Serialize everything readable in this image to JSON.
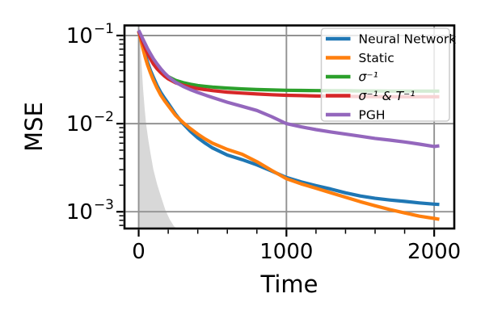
{
  "chart_data": {
    "type": "line",
    "title": "",
    "xlabel": "Time",
    "ylabel": "MSE",
    "x_scale": "linear",
    "y_scale": "log",
    "xlim": [
      -96,
      2136
    ],
    "ylim": [
      0.000645,
      0.1316
    ],
    "grid": true,
    "legend_position": "upper right",
    "x_ticks": [
      {
        "value": 0,
        "label": "0"
      },
      {
        "value": 1000,
        "label": "1000"
      },
      {
        "value": 2000,
        "label": "2000"
      }
    ],
    "x_minor_values": [
      200,
      400,
      600,
      800,
      1200,
      1400,
      1600,
      1800
    ],
    "y_ticks": [
      {
        "value": 0.1,
        "base": "10",
        "exp": "−1"
      },
      {
        "value": 0.01,
        "base": "10",
        "exp": "−2"
      },
      {
        "value": 0.001,
        "base": "10",
        "exp": "−3"
      }
    ],
    "y_minor_values": [
      0.09,
      0.08,
      0.07,
      0.06,
      0.05,
      0.04,
      0.03,
      0.02,
      0.009,
      0.008,
      0.007,
      0.006,
      0.005,
      0.004,
      0.003,
      0.002,
      0.0009,
      0.0008,
      0.0007
    ],
    "x": [
      0,
      10,
      20,
      30,
      45,
      60,
      80,
      100,
      125,
      150,
      175,
      200,
      250,
      300,
      350,
      400,
      450,
      500,
      600,
      700,
      800,
      900,
      1000,
      1100,
      1200,
      1300,
      1400,
      1500,
      1600,
      1700,
      1800,
      1900,
      2000,
      2035
    ],
    "series": [
      {
        "name": "Neural Network",
        "color": "#1f77b4",
        "math": false,
        "values": [
          0.112,
          0.098,
          0.086,
          0.075,
          0.06,
          0.05,
          0.04,
          0.0335,
          0.027,
          0.0225,
          0.0195,
          0.017,
          0.0128,
          0.01,
          0.0082,
          0.0069,
          0.006,
          0.0053,
          0.0044,
          0.0039,
          0.0034,
          0.0029,
          0.00245,
          0.00218,
          0.00198,
          0.00181,
          0.00164,
          0.00151,
          0.00142,
          0.00136,
          0.00131,
          0.00126,
          0.00122,
          0.00121
        ]
      },
      {
        "name": "Static",
        "color": "#ff7f0e",
        "math": false,
        "values": [
          0.112,
          0.096,
          0.082,
          0.07,
          0.056,
          0.0465,
          0.0375,
          0.031,
          0.0252,
          0.021,
          0.0182,
          0.016,
          0.0124,
          0.0103,
          0.0088,
          0.0076,
          0.0067,
          0.006,
          0.0051,
          0.0045,
          0.0037,
          0.00295,
          0.00237,
          0.00207,
          0.00185,
          0.00164,
          0.00146,
          0.0013,
          0.00117,
          0.00106,
          0.00097,
          0.00089,
          0.00084,
          0.00082
        ]
      },
      {
        "name": "σ⁻¹",
        "color": "#2ca02c",
        "math": true,
        "values": [
          0.112,
          0.102,
          0.093,
          0.085,
          0.074,
          0.066,
          0.057,
          0.05,
          0.044,
          0.0398,
          0.0366,
          0.0342,
          0.031,
          0.0292,
          0.028,
          0.0271,
          0.0265,
          0.026,
          0.0253,
          0.0248,
          0.0244,
          0.0241,
          0.0239,
          0.0238,
          0.0237,
          0.0236,
          0.0236,
          0.0235,
          0.0235,
          0.0234,
          0.0234,
          0.0234,
          0.0234,
          0.0234
        ]
      },
      {
        "name": "σ⁻¹ & T⁻¹",
        "color": "#d62728",
        "math": true,
        "values": [
          0.112,
          0.101,
          0.091,
          0.082,
          0.071,
          0.063,
          0.054,
          0.0475,
          0.0418,
          0.0378,
          0.0347,
          0.0322,
          0.0291,
          0.0273,
          0.026,
          0.025,
          0.0243,
          0.0237,
          0.0228,
          0.0222,
          0.0217,
          0.0213,
          0.021,
          0.0208,
          0.0206,
          0.0205,
          0.0204,
          0.0203,
          0.0203,
          0.0202,
          0.0202,
          0.0202,
          0.0202,
          0.0202
        ]
      },
      {
        "name": "PGH",
        "color": "#9467bd",
        "math": false,
        "values": [
          0.115,
          0.106,
          0.098,
          0.09,
          0.08,
          0.071,
          0.062,
          0.0545,
          0.0475,
          0.0418,
          0.0376,
          0.0342,
          0.0295,
          0.0265,
          0.0243,
          0.0226,
          0.0211,
          0.0198,
          0.0175,
          0.0157,
          0.0141,
          0.012,
          0.01,
          0.0092,
          0.00855,
          0.00805,
          0.0076,
          0.0072,
          0.0068,
          0.0065,
          0.0062,
          0.00585,
          0.0055,
          0.0056
        ]
      }
    ],
    "shaded_region": {
      "name": "reference-band",
      "color": "#d8d8d8",
      "x": [
        0,
        8,
        15,
        22,
        30,
        40,
        50,
        65,
        80,
        100,
        125,
        150,
        180,
        210,
        240,
        260
      ],
      "y": [
        0.1316,
        0.1,
        0.062,
        0.04,
        0.025,
        0.015,
        0.01,
        0.0066,
        0.0046,
        0.003,
        0.00205,
        0.0015,
        0.00105,
        0.00082,
        0.00068,
        0.000645
      ]
    },
    "legend_frame_color": "#cccccc",
    "legend_bg_alpha": 0.8,
    "grid_color": "#929292"
  }
}
